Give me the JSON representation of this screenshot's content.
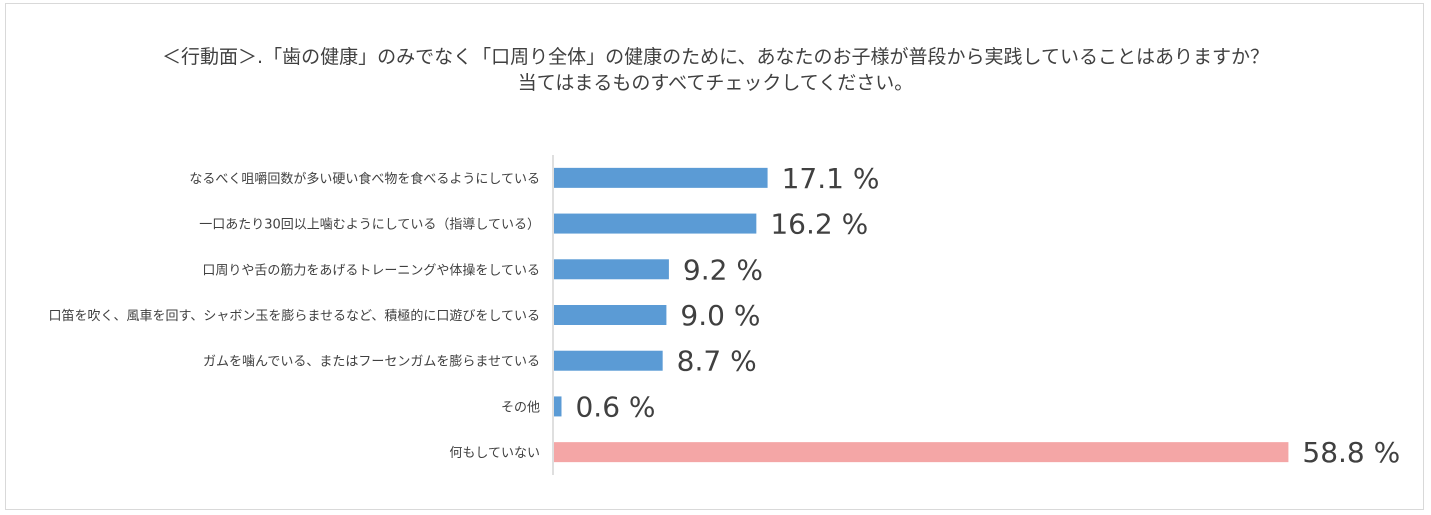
{
  "chart_data": {
    "type": "bar",
    "orientation": "horizontal",
    "title_lines": [
      "＜行動面＞.「歯の健康」のみでなく「口周り全体」の健康のために、あなたのお子様が普段から実践していることはありますか？",
      "当てはまるものすべてチェックしてください。"
    ],
    "categories": [
      "なるべく咀嚼回数が多い硬い食べ物を食べるようにしている",
      "一口あたり30回以上噛むようにしている（指導している）",
      "口周りや舌の筋力をあげるトレーニングや体操をしている",
      "口笛を吹く、風車を回す、シャボン玉を膨らませるなど、積極的に口遊びをしている",
      "ガムを噛んでいる、またはフーセンガムを膨らませている",
      "その他",
      "何もしていない"
    ],
    "values": [
      17.1,
      16.2,
      9.2,
      9.0,
      8.7,
      0.6,
      58.8
    ],
    "value_labels": [
      "17.1 %",
      "16.2 %",
      "9.2 %",
      "9.0 %",
      "8.7 %",
      "0.6 %",
      "58.8 %"
    ],
    "xlim": [
      0,
      100
    ],
    "grid": false,
    "legend": "none",
    "colors": {
      "default_bar": "#5b9bd5",
      "highlight_bar": "#f4a6a6",
      "axis": "#bfbfbf",
      "text": "#404040"
    },
    "highlight_index": 6
  }
}
